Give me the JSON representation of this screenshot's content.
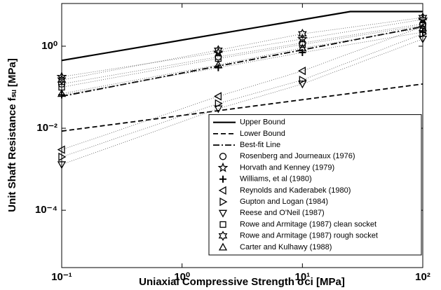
{
  "chart_data": {
    "type": "line",
    "log_x": true,
    "log_y": true,
    "legend": "lower right",
    "xlabel": "Uniaxial Compressive Strength σci [MPa]",
    "ylabel": "Unit Shaft Resistance fₛᵤ [MPa]",
    "xlim": [
      0.1,
      100
    ],
    "ylim": [
      4e-06,
      11
    ],
    "xticks": [
      {
        "value": 0.1,
        "label": "10⁻¹"
      },
      {
        "value": 1,
        "label": "10⁰"
      },
      {
        "value": 10,
        "label": "10¹"
      },
      {
        "value": 100,
        "label": "10²"
      }
    ],
    "yticks": [
      {
        "value": 0.0001,
        "label": "10⁻⁴"
      },
      {
        "value": 0.01,
        "label": "10⁻²"
      },
      {
        "value": 1,
        "label": "10⁰"
      }
    ],
    "x": [
      0.1,
      2,
      10,
      100
    ],
    "series": [
      {
        "name": "Upper Bound",
        "color": "#000000",
        "style": "solid",
        "x": [
          0.1,
          25,
          100
        ],
        "values": [
          0.45,
          7,
          7
        ]
      },
      {
        "name": "Lower Bound",
        "color": "#000000",
        "style": "dashed",
        "x": [
          0.1,
          100
        ],
        "values": [
          0.0085,
          0.12
        ]
      },
      {
        "name": "Best-fit Line",
        "color": "#000000",
        "style": "dashdot",
        "x": [
          0.1,
          100
        ],
        "values": [
          0.06,
          3
        ]
      },
      {
        "name": "Rosenberg and Journeaux (1976)",
        "color": "#000000",
        "marker": "circle",
        "values": [
          0.12,
          0.55,
          1.2,
          3.5
        ]
      },
      {
        "name": "Horvath and Kenney (1979)",
        "color": "#000000",
        "marker": "star",
        "values": [
          0.18,
          0.7,
          1.5,
          4.5
        ]
      },
      {
        "name": "Williams, et al (1980)",
        "color": "#000000",
        "marker": "plus",
        "values": [
          0.065,
          0.3,
          0.7,
          2.2
        ]
      },
      {
        "name": "Reynolds and Kaderabek (1980)",
        "color": "#000000",
        "marker": "tri-left",
        "values": [
          0.003,
          0.06,
          0.25,
          3
        ]
      },
      {
        "name": "Gupton and Logan (1984)",
        "color": "#000000",
        "marker": "tri-right",
        "values": [
          0.002,
          0.04,
          0.15,
          2
        ]
      },
      {
        "name": "Reese and O'Neil (1987)",
        "color": "#000000",
        "marker": "tri-down",
        "values": [
          0.0013,
          0.03,
          0.12,
          1.5
        ]
      },
      {
        "name": "Rowe and Armitage (1987) clean socket",
        "color": "#000000",
        "marker": "square",
        "values": [
          0.1,
          0.5,
          1.1,
          3.2
        ]
      },
      {
        "name": "Rowe and Armitage (1987) rough socket",
        "color": "#000000",
        "marker": "hexagram",
        "values": [
          0.15,
          0.8,
          2,
          5
        ]
      },
      {
        "name": "Carter and Kulhawy (1988)",
        "color": "#000000",
        "marker": "tri-up",
        "values": [
          0.07,
          0.35,
          0.9,
          2.8
        ]
      }
    ]
  }
}
